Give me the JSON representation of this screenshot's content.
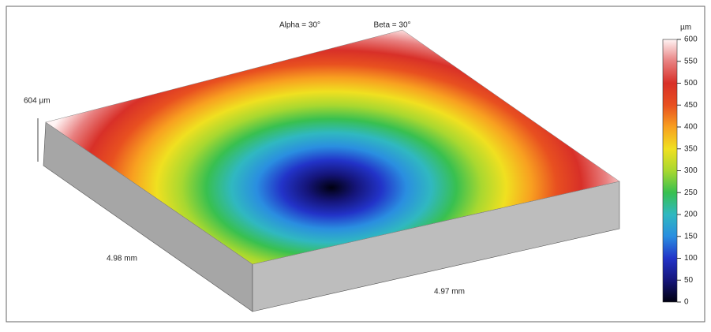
{
  "chart_data": {
    "type": "surface",
    "annotations": [
      "Alpha = 30°",
      "Beta = 30°",
      "604 µm",
      "4.98 mm",
      "4.97 mm"
    ],
    "colorbar": {
      "label": "µm",
      "lim": [
        0,
        600
      ],
      "ticks": [
        0,
        50,
        100,
        150,
        200,
        250,
        300,
        350,
        400,
        450,
        500,
        550,
        600
      ],
      "colors": [
        "#000010",
        "#15157a",
        "#2233c8",
        "#2a8ee0",
        "#30b8c0",
        "#38c050",
        "#a8d830",
        "#f0e020",
        "#f8a020",
        "#e85020",
        "#d83028",
        "#e88080",
        "#fff4f4"
      ]
    }
  }
}
